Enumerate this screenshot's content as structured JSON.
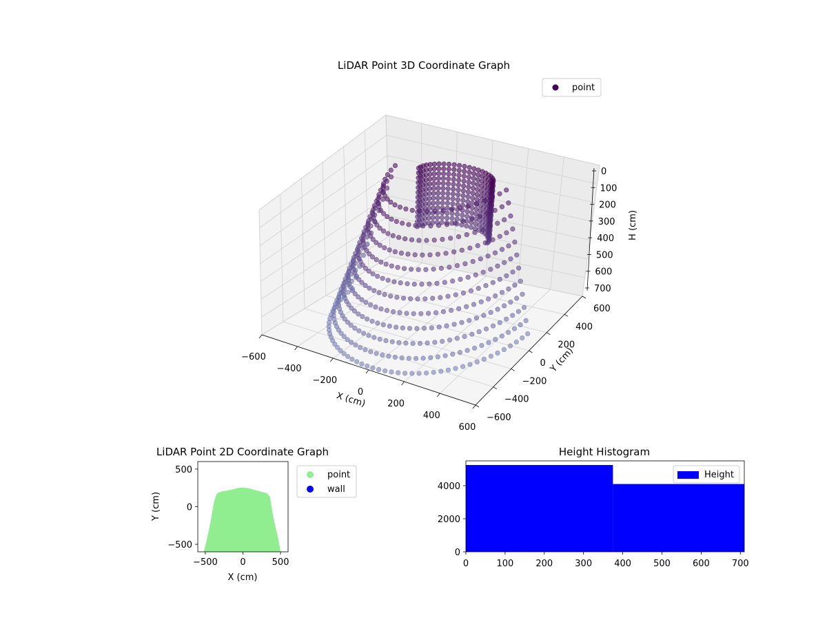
{
  "chart_data": [
    {
      "type": "scatter",
      "title": "LiDAR Point 3D Coordinate Graph",
      "xlabel": "X (cm)",
      "ylabel": "Y (cm)",
      "zlabel": "H (cm)",
      "xlim": [
        -600,
        600
      ],
      "ylim": [
        -600,
        600
      ],
      "zlim": [
        0,
        700
      ],
      "z_inverted": true,
      "x_ticks": [
        "−600",
        "−400",
        "−200",
        "0",
        "200",
        "400",
        "600"
      ],
      "y_ticks": [
        "−600",
        "−400",
        "−200",
        "0",
        "200",
        "400",
        "600"
      ],
      "z_ticks": [
        "0",
        "100",
        "200",
        "300",
        "400",
        "500",
        "600",
        "700"
      ],
      "grid": true,
      "legend": {
        "position": "upper-right",
        "entries": [
          {
            "name": "point",
            "color": "#440154"
          }
        ]
      },
      "colormap": "viridis",
      "series": [
        {
          "name": "point",
          "description_points": {
            "rings": [
              {
                "h": 30,
                "r": 310
              },
              {
                "h": 90,
                "r": 330
              },
              {
                "h": 150,
                "r": 350
              },
              {
                "h": 210,
                "r": 370
              },
              {
                "h": 270,
                "r": 390
              },
              {
                "h": 330,
                "r": 410
              },
              {
                "h": 390,
                "r": 430
              },
              {
                "h": 450,
                "r": 450
              },
              {
                "h": 510,
                "r": 470
              },
              {
                "h": 570,
                "r": 490
              },
              {
                "h": 630,
                "r": 510
              },
              {
                "h": 690,
                "r": 530
              }
            ],
            "y_range": [
              -600,
              260
            ]
          }
        }
      ]
    },
    {
      "type": "scatter",
      "title": "LiDAR Point 2D Coordinate Graph",
      "xlabel": "X (cm)",
      "ylabel": "Y (cm)",
      "xlim": [
        -600,
        600
      ],
      "ylim": [
        -600,
        600
      ],
      "x_ticks": [
        "−500",
        "0",
        "500"
      ],
      "y_ticks": [
        "−500",
        "0",
        "500"
      ],
      "legend": {
        "position": "outside-right",
        "entries": [
          {
            "name": "point",
            "color": "#90ee90"
          },
          {
            "name": "wall",
            "color": "#0000ff"
          }
        ]
      },
      "series": [
        {
          "name": "point",
          "color": "#90ee90",
          "outline": [
            [
              -520,
              -600
            ],
            [
              -480,
              -440
            ],
            [
              -430,
              -200
            ],
            [
              -400,
              -30
            ],
            [
              -380,
              80
            ],
            [
              -350,
              170
            ],
            [
              -300,
              200
            ],
            [
              -180,
              220
            ],
            [
              -60,
              250
            ],
            [
              0,
              255
            ],
            [
              80,
              245
            ],
            [
              200,
              210
            ],
            [
              320,
              180
            ],
            [
              360,
              130
            ],
            [
              370,
              60
            ],
            [
              400,
              -120
            ],
            [
              430,
              -260
            ],
            [
              470,
              -430
            ],
            [
              500,
              -600
            ]
          ]
        },
        {
          "name": "wall",
          "color": "#0000ff",
          "points": []
        }
      ]
    },
    {
      "type": "bar",
      "title": "Height Histogram",
      "xlabel": "",
      "ylabel": "",
      "xlim": [
        0,
        710
      ],
      "ylim": [
        0,
        5500
      ],
      "x_ticks": [
        "0",
        "100",
        "200",
        "300",
        "400",
        "500",
        "600",
        "700"
      ],
      "y_ticks": [
        "0",
        "2000",
        "4000"
      ],
      "legend": {
        "position": "upper-right",
        "entries": [
          {
            "name": "Height",
            "color": "#0000ff"
          }
        ]
      },
      "series": [
        {
          "name": "Height",
          "color": "#0000ff",
          "bins": [
            {
              "from": 0,
              "to": 375,
              "count": 5250
            },
            {
              "from": 375,
              "to": 710,
              "count": 4100
            }
          ]
        }
      ]
    }
  ]
}
